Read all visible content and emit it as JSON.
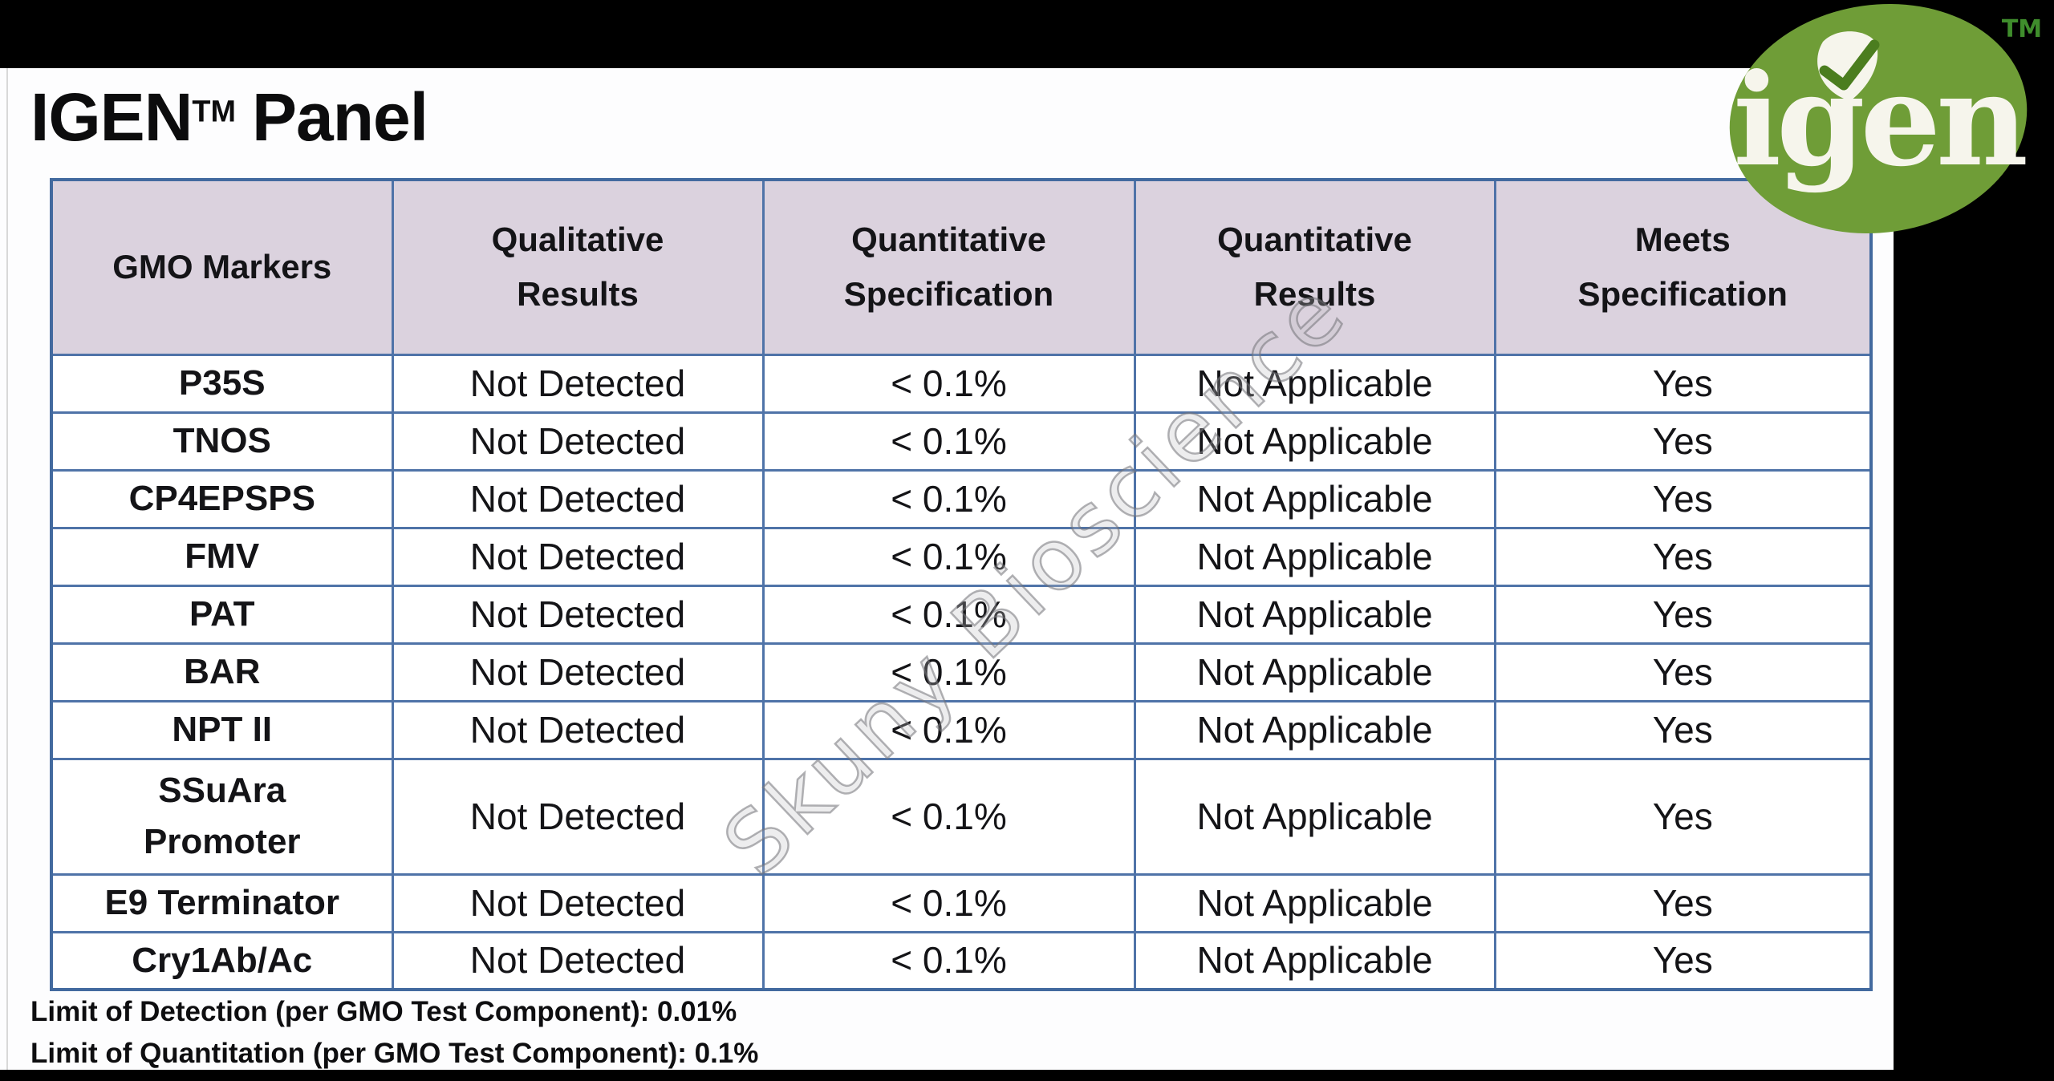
{
  "page": {
    "title_main": "IGEN",
    "title_tm": "TM",
    "title_rest": "Panel"
  },
  "logo": {
    "text": "igen",
    "tm": "TM",
    "ellipse_color": "#6f9d37",
    "check_color": "#4b7d1f",
    "text_color": "#f6f5ec",
    "tm_color": "#3f8d2c"
  },
  "watermark": {
    "text": "Skuny Bioscience"
  },
  "table": {
    "headers": [
      {
        "line1": "GMO Markers"
      },
      {
        "line1": "Qualitative",
        "line2": "Results"
      },
      {
        "line1": "Quantitative",
        "line2": "Specification"
      },
      {
        "line1": "Quantitative",
        "line2": "Results"
      },
      {
        "line1": "Meets",
        "line2": "Specification"
      }
    ],
    "rows": [
      {
        "marker": "P35S",
        "qualitative": "Not Detected",
        "quantitative_spec": "< 0.1%",
        "quantitative_result": "Not Applicable",
        "meets_spec": "Yes"
      },
      {
        "marker": "TNOS",
        "qualitative": "Not Detected",
        "quantitative_spec": "< 0.1%",
        "quantitative_result": "Not Applicable",
        "meets_spec": "Yes"
      },
      {
        "marker": "CP4EPSPS",
        "qualitative": "Not Detected",
        "quantitative_spec": "< 0.1%",
        "quantitative_result": "Not Applicable",
        "meets_spec": "Yes"
      },
      {
        "marker": "FMV",
        "qualitative": "Not Detected",
        "quantitative_spec": "< 0.1%",
        "quantitative_result": "Not Applicable",
        "meets_spec": "Yes"
      },
      {
        "marker": "PAT",
        "qualitative": "Not Detected",
        "quantitative_spec": "< 0.1%",
        "quantitative_result": "Not Applicable",
        "meets_spec": "Yes"
      },
      {
        "marker": "BAR",
        "qualitative": "Not Detected",
        "quantitative_spec": "< 0.1%",
        "quantitative_result": "Not Applicable",
        "meets_spec": "Yes"
      },
      {
        "marker": "NPT II",
        "qualitative": "Not Detected",
        "quantitative_spec": "< 0.1%",
        "quantitative_result": "Not Applicable",
        "meets_spec": "Yes"
      },
      {
        "marker": "SSuAra",
        "marker2": "Promoter",
        "qualitative": "Not Detected",
        "quantitative_spec": "< 0.1%",
        "quantitative_result": "Not Applicable",
        "meets_spec": "Yes"
      },
      {
        "marker": "E9 Terminator",
        "qualitative": "Not Detected",
        "quantitative_spec": "< 0.1%",
        "quantitative_result": "Not Applicable",
        "meets_spec": "Yes"
      },
      {
        "marker": "Cry1Ab/Ac",
        "qualitative": "Not Detected",
        "quantitative_spec": "< 0.1%",
        "quantitative_result": "Not Applicable",
        "meets_spec": "Yes"
      }
    ]
  },
  "footnotes": [
    "Limit of Detection (per GMO Test Component): 0.01%",
    "Limit of Quantitation (per GMO Test Component): 0.1%"
  ],
  "colors": {
    "table_border": "#4f73a8",
    "header_background": "#dbd2de",
    "page_background": "#000000",
    "content_background": "#fdfdfe",
    "watermark_gray": "#787878"
  }
}
